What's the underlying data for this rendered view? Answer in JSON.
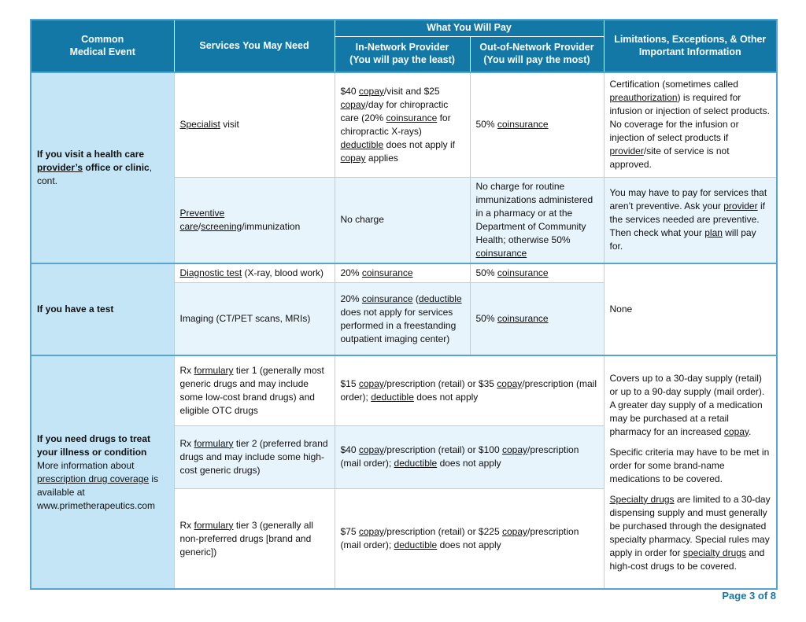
{
  "colors": {
    "header_bg": "#1478A6",
    "section_border": "#58A4D0",
    "event_column_bg": "#C4E5F6",
    "stripe_bg": "#E7F4FB",
    "footer_text": "#1577A5"
  },
  "header": {
    "common_medical_event": "Common\nMedical Event",
    "services": "Services You May Need",
    "what_you_will_pay": "What You Will Pay",
    "in_network": "In-Network Provider\n(You will pay the least)",
    "out_of_network": "Out-of-Network Provider\n(You will pay the most)",
    "limitations": "Limitations, Exceptions, & Other Important Information"
  },
  "sections": [
    {
      "event": [
        {
          "t": "If you visit a health care ",
          "b": true
        },
        {
          "t": "provider’s",
          "b": true,
          "u": true
        },
        {
          "t": " office or clinic",
          "b": true
        },
        {
          "t": ", cont."
        }
      ],
      "rows": [
        {
          "service": [
            {
              "t": "Specialist",
              "u": true
            },
            {
              "t": " visit"
            }
          ],
          "in_network": [
            {
              "t": "$40 "
            },
            {
              "t": "copay",
              "u": true
            },
            {
              "t": "/visit and $25 "
            },
            {
              "t": "copay",
              "u": true
            },
            {
              "t": "/day for chiropractic care (20% "
            },
            {
              "t": "coinsurance",
              "u": true
            },
            {
              "t": " for chiropractic X-rays) "
            },
            {
              "t": "deductible",
              "u": true
            },
            {
              "t": " does not apply if "
            },
            {
              "t": "copay",
              "u": true
            },
            {
              "t": " applies"
            }
          ],
          "out_of_network": [
            {
              "t": "50% "
            },
            {
              "t": "coinsurance",
              "u": true
            }
          ],
          "limitations": [
            {
              "t": "Certification (sometimes called "
            },
            {
              "t": "preauthorization",
              "u": true
            },
            {
              "t": ") is required for infusion or injection of select products.  No coverage for the infusion or injection of select products if "
            },
            {
              "t": "provider",
              "u": true
            },
            {
              "t": "/site of service is not approved."
            }
          ]
        },
        {
          "service": [
            {
              "t": "Preventive care",
              "u": true
            },
            {
              "t": "/"
            },
            {
              "t": "screening",
              "u": true
            },
            {
              "t": "/immunization"
            }
          ],
          "in_network": [
            {
              "t": "No charge"
            }
          ],
          "out_of_network": [
            {
              "t": "No charge for routine immunizations administered in a pharmacy or at the Department of Community Health; otherwise 50% "
            },
            {
              "t": "coinsurance",
              "u": true
            }
          ],
          "limitations": [
            {
              "t": "You may have to pay for services that aren’t preventive. Ask your "
            },
            {
              "t": "provider",
              "u": true
            },
            {
              "t": " if the services needed are preventive. Then check what your "
            },
            {
              "t": "plan",
              "u": true
            },
            {
              "t": " will pay for."
            }
          ]
        }
      ]
    },
    {
      "event": [
        {
          "t": "If you have a test",
          "b": true
        }
      ],
      "limitations": [
        {
          "t": "None"
        }
      ],
      "rows": [
        {
          "service": [
            {
              "t": "Diagnostic test",
              "u": true
            },
            {
              "t": " (X-ray, blood work)"
            }
          ],
          "in_network": [
            {
              "t": "20% "
            },
            {
              "t": "coinsurance",
              "u": true
            }
          ],
          "out_of_network": [
            {
              "t": "50% "
            },
            {
              "t": "coinsurance",
              "u": true
            }
          ]
        },
        {
          "service": [
            {
              "t": "Imaging (CT/PET scans, MRIs)"
            }
          ],
          "in_network": [
            {
              "t": "20% "
            },
            {
              "t": "coinsurance",
              "u": true
            },
            {
              "t": " ("
            },
            {
              "t": "deductible",
              "u": true
            },
            {
              "t": " does not apply for services performed in a freestanding outpatient imaging center)"
            }
          ],
          "out_of_network": [
            {
              "t": "50% "
            },
            {
              "t": "coinsurance",
              "u": true
            }
          ]
        }
      ]
    },
    {
      "event": [
        {
          "t": "If you need drugs to treat your illness or condition",
          "b": true
        },
        {
          "t": "\nMore information about "
        },
        {
          "t": "prescription drug coverage",
          "u": true
        },
        {
          "t": " is available at www.primetherapeutics.com"
        }
      ],
      "limitations_paragraphs": [
        [
          {
            "t": "Covers up to a 30-day supply (retail) or up to a 90-day supply (mail order).  A greater day supply of a medication may be purchased at a retail pharmacy for an increased "
          },
          {
            "t": "copay",
            "u": true
          },
          {
            "t": "."
          }
        ],
        [
          {
            "t": "Specific criteria may have to be met in order for some brand-name medications to be covered."
          }
        ],
        [
          {
            "t": "Specialty drugs",
            "u": true
          },
          {
            "t": " are limited to a 30-day dispensing supply and must generally be purchased through the designated specialty pharmacy. Special rules may apply in order for "
          },
          {
            "t": "specialty drugs",
            "u": true
          },
          {
            "t": " and high-cost drugs to be covered."
          }
        ]
      ],
      "rows": [
        {
          "service": [
            {
              "t": "Rx "
            },
            {
              "t": "formulary",
              "u": true
            },
            {
              "t": " tier 1 (generally most generic drugs and may include some low-cost brand drugs) and eligible OTC drugs"
            }
          ],
          "payment": [
            {
              "t": "$15 "
            },
            {
              "t": "copay",
              "u": true
            },
            {
              "t": "/prescription (retail) or $35 "
            },
            {
              "t": "copay",
              "u": true
            },
            {
              "t": "/prescription (mail order); "
            },
            {
              "t": "deductible",
              "u": true
            },
            {
              "t": " does not apply"
            }
          ]
        },
        {
          "service": [
            {
              "t": "Rx "
            },
            {
              "t": "formulary",
              "u": true
            },
            {
              "t": " tier 2 (preferred brand drugs and may include some high-cost generic drugs)"
            }
          ],
          "payment": [
            {
              "t": "$40 "
            },
            {
              "t": "copay",
              "u": true
            },
            {
              "t": "/prescription (retail) or $100 "
            },
            {
              "t": "copay",
              "u": true
            },
            {
              "t": "/prescription (mail order); "
            },
            {
              "t": "deductible",
              "u": true
            },
            {
              "t": " does not apply"
            }
          ]
        },
        {
          "service": [
            {
              "t": "Rx "
            },
            {
              "t": "formulary",
              "u": true
            },
            {
              "t": " tier 3 (generally all non-preferred drugs [brand and generic])"
            }
          ],
          "payment": [
            {
              "t": "$75 "
            },
            {
              "t": "copay",
              "u": true
            },
            {
              "t": "/prescription (retail) or $225 "
            },
            {
              "t": "copay",
              "u": true
            },
            {
              "t": "/prescription (mail order); "
            },
            {
              "t": "deductible",
              "u": true
            },
            {
              "t": " does not apply"
            }
          ]
        }
      ]
    }
  ],
  "footer": {
    "page_label": "Page 3 of 8"
  }
}
